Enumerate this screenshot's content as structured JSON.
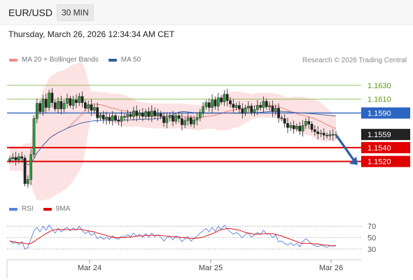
{
  "header": {
    "pair": "EUR/USD",
    "timeframe": "30 MIN",
    "datetime": "Thursday, March 26, 2026 12:34:34 AM CET"
  },
  "legend": {
    "items": [
      {
        "label": "MA 20 + Bollinger Bands",
        "color": "#f08a8a"
      },
      {
        "label": "MA 50",
        "color": "#2f5aa0"
      }
    ],
    "copyright": "Research © 2026 Trading Central"
  },
  "rsi_legend": {
    "items": [
      {
        "label": "RSI",
        "color": "#5b7fdc"
      },
      {
        "label": "9MA",
        "color": "#e00000"
      }
    ]
  },
  "chart_data": [
    {
      "type": "candlestick",
      "x_labels": [
        "Mar 24",
        "Mar 25",
        "Mar 26"
      ],
      "levels": [
        {
          "value": 1.163,
          "label": "1.1630",
          "kind": "resistance",
          "color": "#6aa820"
        },
        {
          "value": 1.161,
          "label": "1.1610",
          "kind": "resistance",
          "color": "#6aa820"
        },
        {
          "value": 1.159,
          "label": "1.1590",
          "kind": "pivot",
          "color": "#2b66c2"
        },
        {
          "value": 1.1559,
          "label": "1.1559",
          "kind": "last",
          "color": "#222222"
        },
        {
          "value": 1.154,
          "label": "1.1540",
          "kind": "support",
          "color": "#e00000"
        },
        {
          "value": 1.152,
          "label": "1.1520",
          "kind": "support",
          "color": "#e00000"
        }
      ],
      "target_arrow": {
        "from": 1.1559,
        "to": 1.1523,
        "color": "#2b5ea8"
      },
      "closes": [
        1.1524,
        1.1526,
        1.1522,
        1.1527,
        1.1525,
        1.1488,
        1.1494,
        1.153,
        1.1582,
        1.1604,
        1.1592,
        1.161,
        1.1598,
        1.1619,
        1.1605,
        1.1596,
        1.1607,
        1.1596,
        1.1604,
        1.1611,
        1.1601,
        1.1609,
        1.1605,
        1.1614,
        1.1605,
        1.1597,
        1.1602,
        1.1594,
        1.1598,
        1.1583,
        1.1587,
        1.1581,
        1.1584,
        1.1579,
        1.1586,
        1.158,
        1.1578,
        1.1585,
        1.1584,
        1.1588,
        1.1585,
        1.1593,
        1.1586,
        1.159,
        1.1585,
        1.1592,
        1.1585,
        1.1593,
        1.1586,
        1.1589,
        1.1585,
        1.1576,
        1.1583,
        1.1586,
        1.1578,
        1.1586,
        1.1582,
        1.1573,
        1.1579,
        1.1583,
        1.1574,
        1.158,
        1.1583,
        1.1591,
        1.1599,
        1.1605,
        1.1598,
        1.1609,
        1.16,
        1.1612,
        1.1606,
        1.1617,
        1.1608,
        1.1603,
        1.1598,
        1.1601,
        1.1596,
        1.159,
        1.1597,
        1.16,
        1.1591,
        1.1595,
        1.1601,
        1.1598,
        1.1607,
        1.1599,
        1.16,
        1.1592,
        1.1597,
        1.1583,
        1.1582,
        1.1575,
        1.1569,
        1.1572,
        1.1567,
        1.1571,
        1.1564,
        1.1572,
        1.1578,
        1.1574,
        1.1566,
        1.1563,
        1.156,
        1.1561,
        1.1558,
        1.1557,
        1.1559,
        1.1558,
        1.1559
      ],
      "rsi": {
        "ticks": [
          70,
          50,
          30
        ],
        "rsi_values": [
          45,
          40,
          42,
          38,
          43,
          30,
          33,
          48,
          62,
          68,
          60,
          70,
          63,
          72,
          65,
          58,
          66,
          60,
          65,
          68,
          62,
          67,
          63,
          70,
          62,
          57,
          61,
          54,
          58,
          48,
          52,
          47,
          51,
          47,
          53,
          49,
          47,
          53,
          52,
          55,
          52,
          58,
          52,
          56,
          51,
          57,
          51,
          58,
          52,
          55,
          51,
          44,
          50,
          53,
          46,
          53,
          50,
          43,
          48,
          52,
          44,
          49,
          52,
          58,
          62,
          66,
          60,
          68,
          61,
          70,
          64,
          72,
          65,
          60,
          56,
          59,
          55,
          50,
          56,
          58,
          51,
          55,
          59,
          56,
          63,
          56,
          57,
          50,
          55,
          43,
          44,
          40,
          37,
          41,
          36,
          40,
          34,
          43,
          48,
          44,
          38,
          36,
          34,
          37,
          35,
          33,
          36,
          35,
          37
        ],
        "ma_values": [
          44,
          43,
          42,
          41,
          41,
          40,
          39,
          40,
          43,
          47,
          50,
          54,
          57,
          60,
          63,
          64,
          65,
          64,
          64,
          64,
          64,
          64,
          64,
          65,
          64,
          63,
          62,
          61,
          60,
          58,
          57,
          55,
          54,
          52,
          51,
          50,
          50,
          50,
          50,
          51,
          51,
          52,
          53,
          53,
          53,
          54,
          54,
          54,
          54,
          54,
          54,
          53,
          53,
          52,
          52,
          51,
          51,
          50,
          50,
          49,
          49,
          49,
          49,
          50,
          51,
          53,
          55,
          57,
          59,
          62,
          64,
          65,
          66,
          66,
          65,
          64,
          63,
          61,
          59,
          58,
          57,
          56,
          56,
          56,
          57,
          57,
          57,
          57,
          56,
          54,
          53,
          51,
          49,
          47,
          45,
          43,
          41,
          40,
          40,
          40,
          40,
          39,
          39,
          38,
          37,
          37,
          36,
          36,
          36
        ]
      }
    }
  ]
}
